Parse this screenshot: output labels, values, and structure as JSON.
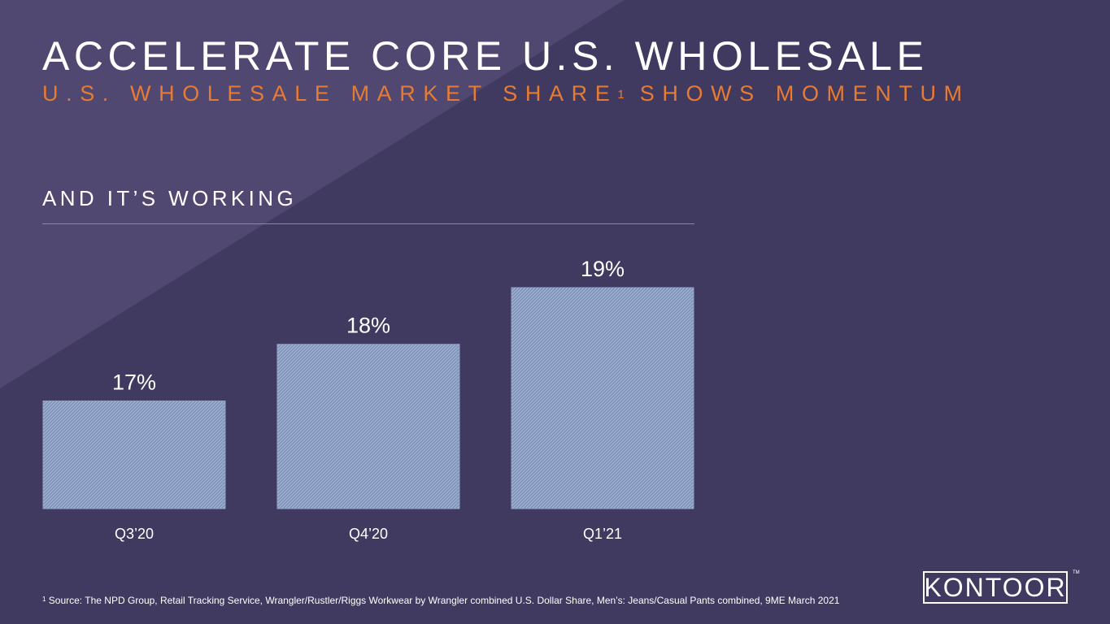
{
  "title": "ACCELERATE CORE U.S. WHOLESALE",
  "subtitle": {
    "text_before": "U.S. WHOLESALE MARKET SHARE",
    "footnote_marker": "1",
    "text_after": " SHOWS MOMENTUM"
  },
  "section_heading": "AND IT’S WORKING",
  "footnote": {
    "marker": "1",
    "text": " Source: The NPD Group, Retail Tracking Service, Wrangler/Rustler/Riggs Workwear by Wrangler combined U.S. Dollar Share, Men’s: Jeans/Casual Pants combined, 9ME March 2021"
  },
  "logo": {
    "text": "KONTOOR",
    "trademark": "TM"
  },
  "colors": {
    "background": "#403a60",
    "diagonal": "#504870",
    "accent_orange": "#e87b32",
    "bar_fill": "#7e92b8",
    "bar_hatch": "#a9bbd8"
  },
  "chart_data": {
    "type": "bar",
    "title": "",
    "xlabel": "",
    "ylabel": "",
    "categories": [
      "Q3’20",
      "Q4’20",
      "Q1’21"
    ],
    "values": [
      17,
      18,
      19
    ],
    "value_labels": [
      "17%",
      "18%",
      "19%"
    ],
    "ylim": [
      15.1,
      19
    ],
    "grid": false,
    "legend": "none"
  }
}
